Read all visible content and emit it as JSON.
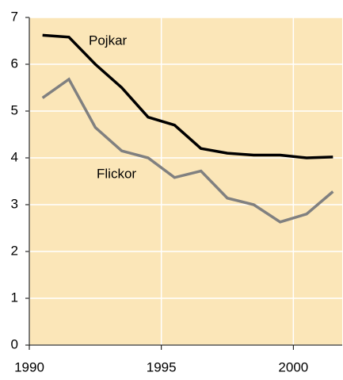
{
  "chart_data": {
    "type": "line",
    "series": [
      {
        "name": "Pojkar",
        "color": "#000000",
        "x": [
          1990.5,
          1991.5,
          1992.5,
          1993.5,
          1994.5,
          1995.5,
          1996.5,
          1997.5,
          1998.5,
          1999.5,
          2000.5,
          2001.5
        ],
        "values": [
          6.62,
          6.58,
          6.0,
          5.5,
          4.87,
          4.7,
          4.2,
          4.1,
          4.06,
          4.06,
          4.0,
          4.02
        ]
      },
      {
        "name": "Flickor",
        "color": "#808080",
        "x": [
          1990.5,
          1991.5,
          1992.5,
          1993.5,
          1994.5,
          1995.5,
          1996.5,
          1997.5,
          1998.5,
          1999.5,
          2000.5,
          2001.5
        ],
        "values": [
          5.28,
          5.68,
          4.65,
          4.15,
          4.0,
          3.58,
          3.72,
          3.14,
          3.0,
          2.63,
          2.8,
          3.28
        ]
      }
    ],
    "xlim": [
      1990,
      2001.85
    ],
    "xticks": [
      1990,
      1995,
      2000
    ],
    "ylim": [
      0,
      7
    ],
    "yticks": [
      0,
      1,
      2,
      3,
      4,
      5,
      6,
      7
    ],
    "grid": true
  }
}
